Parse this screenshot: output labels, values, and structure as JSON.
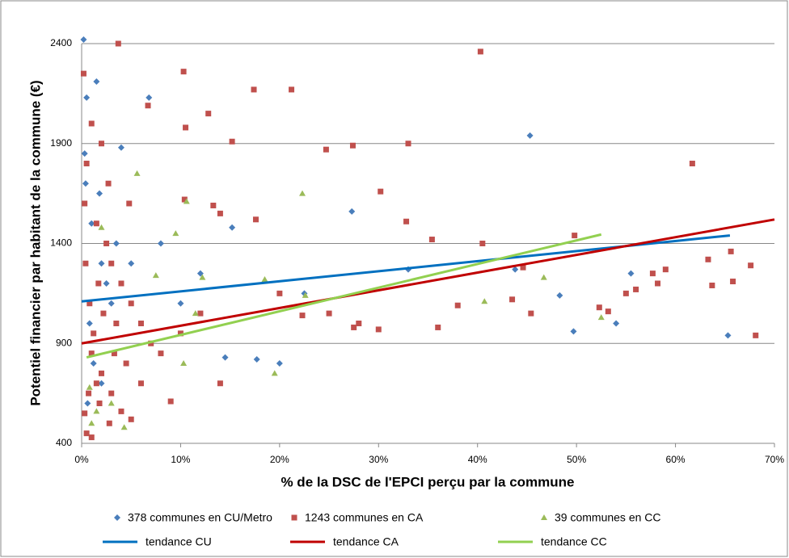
{
  "chart_data": {
    "type": "scatter",
    "xlabel": "% de la DSC de l'EPCI perçu par la commune",
    "ylabel": "Potentiel financier par habitant de la commune (€)",
    "xlim": [
      0,
      70
    ],
    "ylim": [
      400,
      2400
    ],
    "xticks": [
      {
        "value": 0,
        "label": "0%"
      },
      {
        "value": 10,
        "label": "10%"
      },
      {
        "value": 20,
        "label": "20%"
      },
      {
        "value": 30,
        "label": "30%"
      },
      {
        "value": 40,
        "label": "40%"
      },
      {
        "value": 50,
        "label": "50%"
      },
      {
        "value": 60,
        "label": "60%"
      },
      {
        "value": 70,
        "label": "70%"
      }
    ],
    "yticks": [
      400,
      900,
      1400,
      1900,
      2400
    ],
    "grid": true,
    "series": [
      {
        "name": "378 communes en CU/Metro",
        "color": "#4a7ebb",
        "marker": "diamond",
        "x": [
          0.2,
          0.5,
          1.5,
          0.3,
          6.8,
          45.3,
          27.3,
          15.2,
          33,
          43.8,
          48.3,
          49.7,
          54,
          55.5,
          65.3,
          20,
          17.7,
          14.5,
          22.5,
          1,
          2,
          3,
          4,
          0.8,
          1.2,
          2.5,
          3.5,
          5,
          8,
          10,
          12,
          0.4,
          1.8,
          0.6,
          2
        ],
        "values": [
          2420,
          2130,
          2210,
          1850,
          2130,
          1940,
          1560,
          1480,
          1270,
          1270,
          1140,
          960,
          1000,
          1250,
          940,
          800,
          820,
          830,
          1150,
          1500,
          1300,
          1100,
          1880,
          1000,
          800,
          1200,
          1400,
          1300,
          1400,
          1100,
          1250,
          1700,
          1650,
          600,
          700
        ]
      },
      {
        "name": "1243 communes en CA",
        "color": "#c0504d",
        "marker": "square",
        "x": [
          3.7,
          40.3,
          10.3,
          21.2,
          17.4,
          6.7,
          12.8,
          10.5,
          15.2,
          24.7,
          27.4,
          33,
          61.7,
          30.2,
          10.4,
          13.3,
          14,
          17.6,
          32.8,
          35.4,
          40.5,
          49.8,
          44.6,
          57.7,
          56,
          59,
          63.3,
          65.6,
          65.8,
          67.6,
          68.1,
          63.7,
          52.3,
          53.2,
          55,
          58.2,
          38,
          43.5,
          45.4,
          36,
          30,
          27.5,
          28,
          25,
          22.3,
          20,
          14,
          9,
          2,
          1,
          0.2,
          0.5,
          0.3,
          1.5,
          2.5,
          3,
          4,
          5,
          6,
          7,
          1,
          2,
          3,
          4,
          5,
          0.5,
          1,
          1.5,
          0.8,
          1.2,
          2.2,
          3.3,
          4.5,
          8,
          10,
          12,
          0.3,
          0.7,
          1.8,
          2.8,
          6,
          3.5,
          0.4,
          2.7,
          4.8,
          1.7
        ],
        "values": [
          2400,
          2360,
          2260,
          2170,
          2170,
          2090,
          2050,
          1980,
          1910,
          1870,
          1890,
          1900,
          1800,
          1660,
          1620,
          1590,
          1550,
          1520,
          1510,
          1420,
          1400,
          1440,
          1280,
          1250,
          1170,
          1270,
          1320,
          1360,
          1210,
          1290,
          940,
          1190,
          1080,
          1060,
          1150,
          1200,
          1090,
          1120,
          1050,
          980,
          970,
          980,
          1000,
          1050,
          1040,
          1150,
          700,
          610,
          1900,
          2000,
          2250,
          1800,
          1600,
          1500,
          1400,
          1300,
          1200,
          1100,
          1000,
          900,
          850,
          750,
          650,
          560,
          520,
          450,
          430,
          700,
          1100,
          950,
          1050,
          850,
          800,
          850,
          950,
          1050,
          550,
          650,
          600,
          500,
          700,
          1000,
          1300,
          1700,
          1600,
          1200
        ]
      },
      {
        "name": "39 communes en CC",
        "color": "#9bbb59",
        "marker": "triangle",
        "x": [
          5.6,
          22.3,
          10.6,
          9.5,
          18.5,
          12.2,
          22.6,
          46.7,
          40.7,
          52.5,
          19.5,
          10.3,
          4.3,
          1,
          1.5,
          3,
          2,
          7.5,
          11.5,
          0.8
        ],
        "values": [
          1750,
          1650,
          1610,
          1450,
          1220,
          1230,
          1140,
          1230,
          1110,
          1030,
          750,
          800,
          480,
          500,
          560,
          600,
          1480,
          1240,
          1050,
          680
        ]
      }
    ],
    "trends": [
      {
        "name": "tendance CU",
        "color": "#0070c0",
        "x": [
          0,
          65.5
        ],
        "values": [
          1110,
          1440
        ]
      },
      {
        "name": "tendance CA",
        "color": "#c00000",
        "x": [
          0,
          70
        ],
        "values": [
          900,
          1520
        ]
      },
      {
        "name": "tendance CC",
        "color": "#92d050",
        "x": [
          0.5,
          52.5
        ],
        "values": [
          830,
          1445
        ]
      }
    ]
  }
}
